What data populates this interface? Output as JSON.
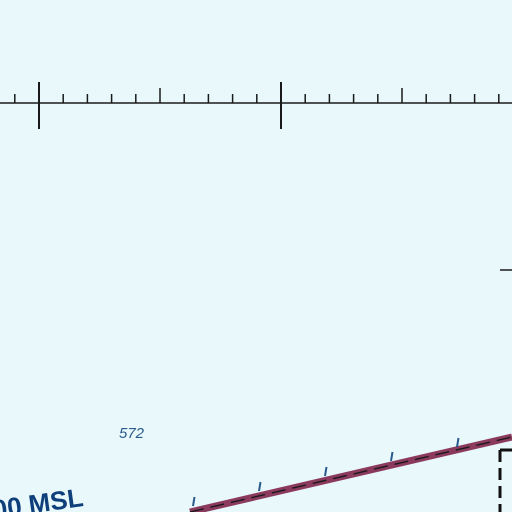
{
  "map": {
    "background_color": "#e8f8fb",
    "graticule_color": "#1a1a1a",
    "depth_sounding": "572",
    "depth_text_color": "#2a5a8c",
    "altitude_label": "00 MSL",
    "altitude_text_color": "#0e3f7a",
    "boundary_color": "#8b3a5e",
    "boundary_dash_color": "#1a1a1a",
    "sector_line_color": "#111111"
  }
}
